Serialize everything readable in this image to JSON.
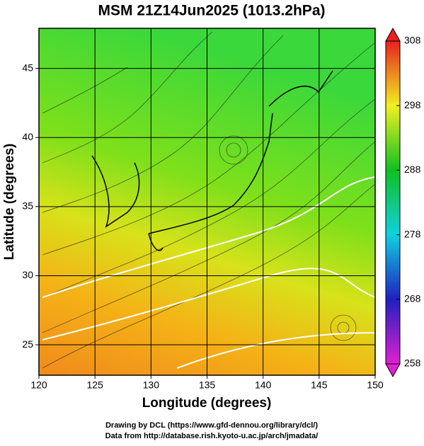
{
  "chart_data": {
    "type": "map",
    "title": "MSM 21Z14Jun2025 (1013.2hPa)",
    "x_label": "Longitude (degrees)",
    "y_label": "Latitude  (degrees)",
    "xlim": [
      120,
      150
    ],
    "xticks": [
      120,
      125,
      130,
      135,
      140,
      145,
      150
    ],
    "ylim": [
      22.8,
      47.9
    ],
    "yticks": [
      25,
      30,
      35,
      40,
      45
    ],
    "grid": true,
    "colorbar": {
      "clim": [
        258,
        308
      ],
      "ticks": [
        258,
        268,
        278,
        288,
        298,
        308
      ]
    },
    "footer": [
      "Drawing by DCL (https://www.gfd-dennou.org/library/dcl/)",
      "Data from http://database.rish.kyoto-u.ac.jp/arch/jmadata/"
    ]
  }
}
